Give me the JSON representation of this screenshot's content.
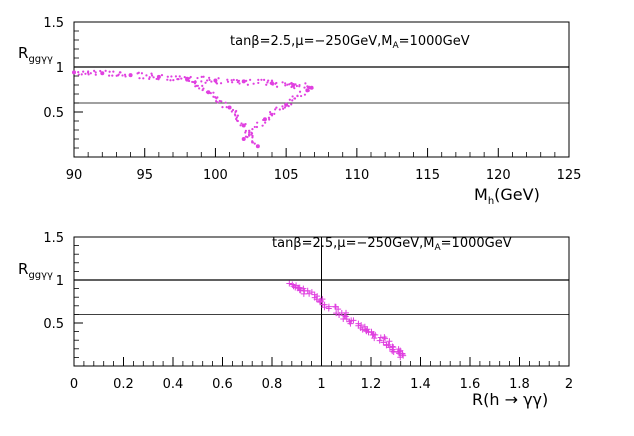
{
  "chart_data": [
    {
      "type": "scatter",
      "annotation": "tanβ=2.5,μ=−250GeV,M",
      "annotation_sub": "A",
      "annotation_tail": "=1000GeV",
      "xlabel": "M",
      "xlabel_sub": "h",
      "xlabel_tail": "(GeV)",
      "ylabel": "R",
      "ylabel_sub": "ggγγ",
      "xlim": [
        90,
        125
      ],
      "ylim": [
        0,
        1.5
      ],
      "x_ticks": [
        "90",
        "95",
        "100",
        "105",
        "110",
        "115",
        "120",
        "125"
      ],
      "y_ticks": [
        "0.5",
        "1",
        "1.5"
      ],
      "reference_lines": [
        1.0,
        0.6
      ],
      "marker_color": "#e040e0",
      "series": [
        {
          "x": [
            90.0,
            92.0,
            94.0,
            96.0,
            98.0,
            100.0,
            102.0,
            104.0,
            105.5,
            106.8
          ],
          "y": [
            0.94,
            0.93,
            0.91,
            0.89,
            0.87,
            0.85,
            0.84,
            0.82,
            0.8,
            0.77
          ]
        },
        {
          "x": [
            98.0,
            99.5,
            101.0,
            102.0,
            103.0
          ],
          "y": [
            0.86,
            0.72,
            0.55,
            0.35,
            0.12
          ]
        },
        {
          "x": [
            102.0,
            103.5,
            105.0,
            106.5
          ],
          "y": [
            0.2,
            0.42,
            0.58,
            0.74
          ]
        }
      ]
    },
    {
      "type": "scatter",
      "annotation": "tanβ=2.5,μ=−250GeV,M",
      "annotation_sub": "A",
      "annotation_tail": "=1000GeV",
      "xlabel": "R(h → γγ)",
      "ylabel": "R",
      "ylabel_sub": "ggγγ",
      "xlim": [
        0,
        2
      ],
      "ylim": [
        0,
        1.5
      ],
      "x_ticks": [
        "0",
        "0.2",
        "0.4",
        "0.6",
        "0.8",
        "1",
        "1.2",
        "1.4",
        "1.6",
        "1.8",
        "2"
      ],
      "y_ticks": [
        "0.5",
        "1",
        "1.5"
      ],
      "reference_lines": [
        1.0,
        0.6
      ],
      "reference_vline": 1.0,
      "marker_color": "#e040e0",
      "series": [
        {
          "x": [
            0.87,
            0.95,
            1.03,
            1.12,
            1.21,
            1.29,
            1.33
          ],
          "y": [
            0.96,
            0.84,
            0.69,
            0.53,
            0.37,
            0.22,
            0.12
          ]
        }
      ]
    }
  ]
}
